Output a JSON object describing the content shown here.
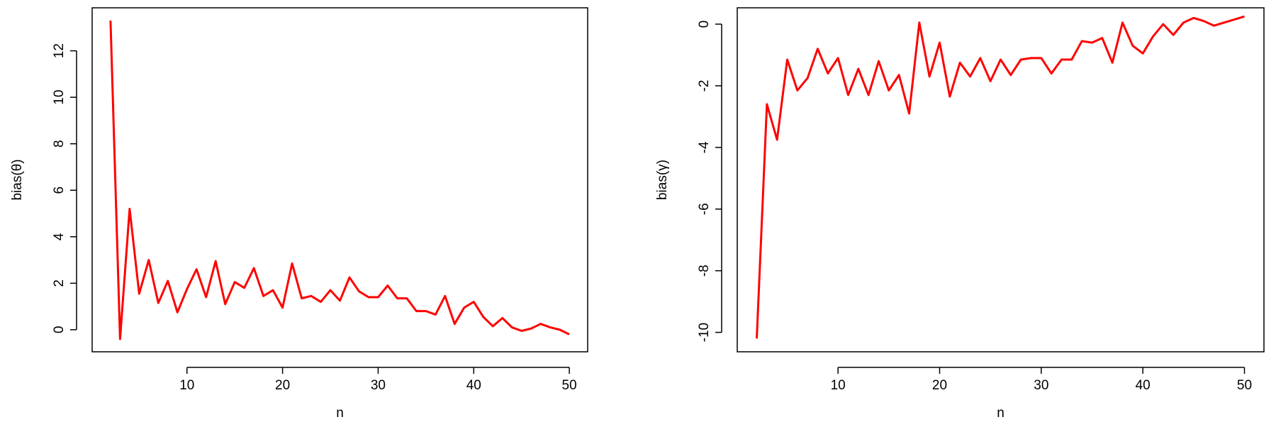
{
  "chart_data": [
    {
      "type": "line",
      "xlabel": "n",
      "ylabel": "bias(θ)",
      "x": [
        2,
        3,
        4,
        5,
        6,
        7,
        8,
        9,
        10,
        11,
        12,
        13,
        14,
        15,
        16,
        17,
        18,
        19,
        20,
        21,
        22,
        23,
        24,
        25,
        26,
        27,
        28,
        29,
        30,
        31,
        32,
        33,
        34,
        35,
        36,
        37,
        38,
        39,
        40,
        41,
        42,
        43,
        44,
        45,
        46,
        47,
        48,
        49,
        50
      ],
      "series": [
        {
          "color": "#ff0000",
          "values": [
            13.3,
            -0.4,
            5.2,
            1.55,
            3.0,
            1.15,
            2.1,
            0.75,
            1.75,
            2.6,
            1.4,
            2.95,
            1.1,
            2.05,
            1.8,
            2.65,
            1.45,
            1.7,
            0.95,
            2.85,
            1.35,
            1.45,
            1.2,
            1.7,
            1.25,
            2.25,
            1.65,
            1.4,
            1.4,
            1.9,
            1.35,
            1.35,
            0.8,
            0.8,
            0.65,
            1.45,
            0.25,
            0.95,
            1.2,
            0.55,
            0.15,
            0.5,
            0.1,
            -0.05,
            0.05,
            0.25,
            0.1,
            0.0,
            -0.2
          ]
        }
      ],
      "xlim": [
        0.08,
        51.92
      ],
      "xticks": [
        10,
        20,
        30,
        40,
        50
      ],
      "ylim": [
        -0.95,
        13.85
      ],
      "yticks": [
        0,
        2,
        4,
        6,
        8,
        10,
        12
      ]
    },
    {
      "type": "line",
      "xlabel": "n",
      "ylabel": "bias(γ)",
      "x": [
        2,
        3,
        4,
        5,
        6,
        7,
        8,
        9,
        10,
        11,
        12,
        13,
        14,
        15,
        16,
        17,
        18,
        19,
        20,
        21,
        22,
        23,
        24,
        25,
        26,
        27,
        28,
        29,
        30,
        31,
        32,
        33,
        34,
        35,
        36,
        37,
        38,
        39,
        40,
        41,
        42,
        43,
        44,
        45,
        46,
        47,
        48,
        49,
        50
      ],
      "series": [
        {
          "color": "#ff0000",
          "values": [
            -10.2,
            -2.6,
            -3.75,
            -1.15,
            -2.15,
            -1.75,
            -0.8,
            -1.6,
            -1.1,
            -2.3,
            -1.45,
            -2.3,
            -1.2,
            -2.15,
            -1.65,
            -2.9,
            0.05,
            -1.7,
            -0.6,
            -2.35,
            -1.25,
            -1.7,
            -1.1,
            -1.85,
            -1.15,
            -1.65,
            -1.15,
            -1.1,
            -1.1,
            -1.6,
            -1.15,
            -1.15,
            -0.55,
            -0.6,
            -0.45,
            -1.25,
            0.05,
            -0.7,
            -0.95,
            -0.4,
            0.0,
            -0.35,
            0.05,
            0.2,
            0.1,
            -0.05,
            0.05,
            0.15,
            0.25
          ]
        }
      ],
      "xlim": [
        0.08,
        51.92
      ],
      "xticks": [
        10,
        20,
        30,
        40,
        50
      ],
      "ylim": [
        -10.63,
        0.53
      ],
      "yticks": [
        -10,
        -8,
        -6,
        -4,
        -2,
        0
      ]
    }
  ]
}
